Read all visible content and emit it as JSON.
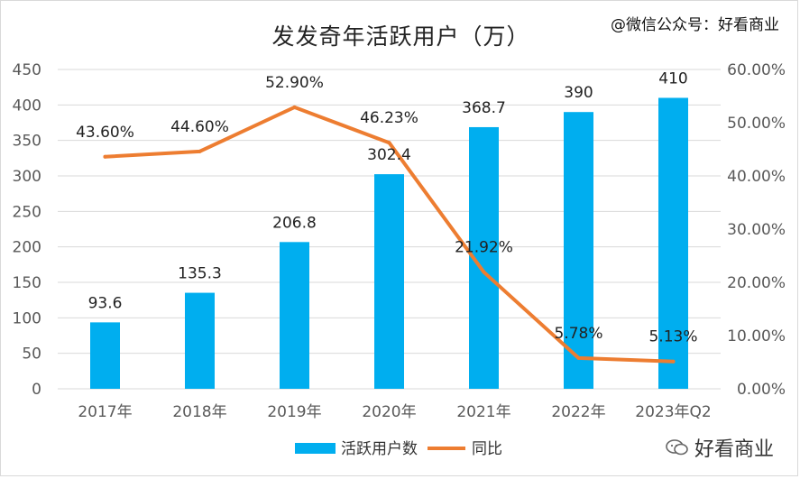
{
  "watermark": {
    "top": "@微信公众号：好看商业",
    "bottom": "好看商业"
  },
  "colors": {
    "bar": "#00aeef",
    "line": "#ed7d31",
    "grid": "#d9d9d9",
    "axis_text": "#595959"
  },
  "chart_data": {
    "type": "bar",
    "title": "发发奇年活跃用户（万）",
    "categories": [
      "2017年",
      "2018年",
      "2019年",
      "2020年",
      "2021年",
      "2022年",
      "2023年Q2"
    ],
    "series": [
      {
        "name": "活跃用户数",
        "type": "bar",
        "axis": "left",
        "values": [
          93.6,
          135.3,
          206.8,
          302.4,
          368.7,
          390,
          410
        ],
        "labels": [
          "93.6",
          "135.3",
          "206.8",
          "302.4",
          "368.7",
          "390",
          "410"
        ]
      },
      {
        "name": "同比",
        "type": "line",
        "axis": "right",
        "values": [
          43.6,
          44.6,
          52.9,
          46.23,
          21.92,
          5.78,
          5.13
        ],
        "labels": [
          "43.60%",
          "44.60%",
          "52.90%",
          "46.23%",
          "21.92%",
          "5.78%",
          "5.13%"
        ]
      }
    ],
    "y_left": {
      "range": [
        0,
        450
      ],
      "ticks": [
        "0",
        "50",
        "100",
        "150",
        "200",
        "250",
        "300",
        "350",
        "400",
        "450"
      ]
    },
    "y_right": {
      "range": [
        0,
        60
      ],
      "ticks": [
        "0.00%",
        "10.00%",
        "20.00%",
        "30.00%",
        "40.00%",
        "50.00%",
        "60.00%"
      ]
    },
    "grid": true,
    "legend_position": "bottom"
  }
}
